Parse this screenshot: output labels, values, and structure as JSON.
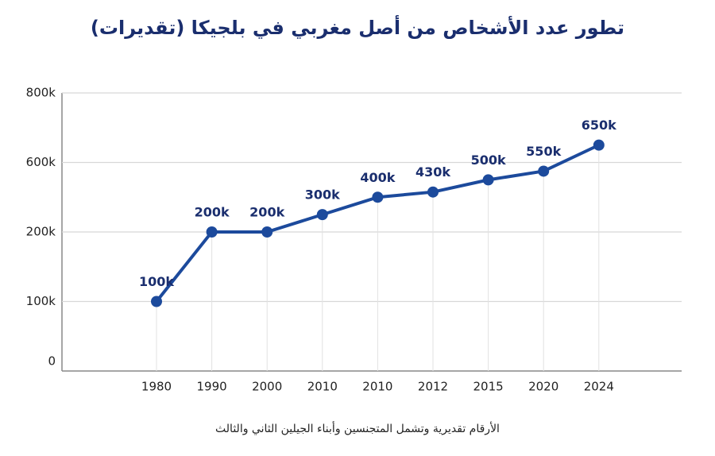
{
  "chart_data": {
    "type": "line",
    "title": "تطور عدد الأشخاص من أصل مغربي في بلجيكا (تقديرات)",
    "note": "الأرقام تقديرية وتشمل المتجنسين وأبناء الجيلين الثاني والثالث",
    "categories": [
      "1980",
      "1990",
      "2000",
      "2010",
      "2010",
      "2012",
      "2015",
      "2020",
      "2024"
    ],
    "values": [
      100000,
      200000,
      200000,
      300000,
      400000,
      430000,
      500000,
      550000,
      650000
    ],
    "value_labels": [
      "100k",
      "200k",
      "200k",
      "300k",
      "400k",
      "430k",
      "500k",
      "550k",
      "650k"
    ],
    "color": "#1c4a9c",
    "ylim": [
      0,
      800000
    ],
    "yticks": [
      0,
      {
        "value": 100000,
        "label": "100k"
      },
      {
        "value": 200000,
        "label": "200k"
      },
      {
        "value": 600000,
        "label": "600k"
      },
      {
        "value": 800000,
        "label": "800k"
      }
    ],
    "grid": true
  }
}
